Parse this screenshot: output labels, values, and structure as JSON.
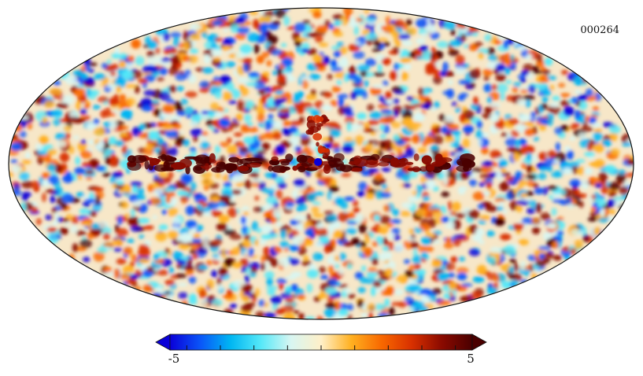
{
  "map": {
    "projection": "mollweide",
    "id_label": "000264",
    "colormap": [
      "#0a00d8",
      "#0a55f8",
      "#00b6f2",
      "#55e8f8",
      "#d8f6f2",
      "#fff0c8",
      "#ffb020",
      "#f86800",
      "#d83000",
      "#8a0a00",
      "#4a0000"
    ]
  },
  "colorbar": {
    "min_label": "-5",
    "max_label": "5",
    "min_value": -5,
    "max_value": 5,
    "extend": "both",
    "tick_count": 9
  }
}
